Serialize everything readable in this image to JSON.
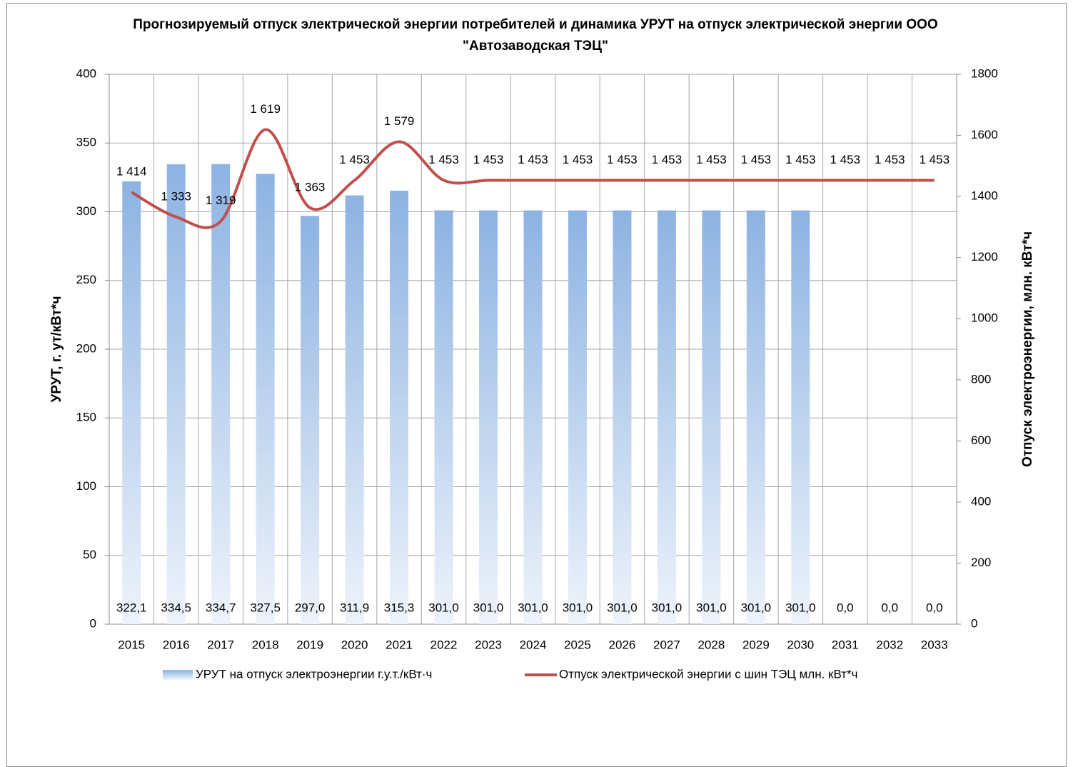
{
  "chart_data": {
    "type": "bar_line",
    "title": "Прогнозируемый отпуск электрической энергии потребителей и динамика УРУТ на отпуск электрической энергии ООО \"Автозаводская ТЭЦ\"",
    "y_label": "УРУТ, г. ут/кВт*ч",
    "y2_label": "Отпуск электроэнергии, млн. кВт*ч",
    "categories": [
      "2015",
      "2016",
      "2017",
      "2018",
      "2019",
      "2020",
      "2021",
      "2022",
      "2023",
      "2024",
      "2025",
      "2026",
      "2027",
      "2028",
      "2029",
      "2030",
      "2031",
      "2032",
      "2033"
    ],
    "series": [
      {
        "name": "УРУТ на отпуск электроэнергии г.у.т./кВт·ч",
        "type": "bar",
        "color": "#8db3e2",
        "values": [
          322.1,
          334.5,
          334.7,
          327.5,
          297.0,
          311.9,
          315.3,
          301.0,
          301.0,
          301.0,
          301.0,
          301.0,
          301.0,
          301.0,
          301.0,
          301.0,
          0.0,
          0.0,
          0.0
        ],
        "value_labels": [
          "322,1",
          "334,5",
          "334,7",
          "327,5",
          "297,0",
          "311,9",
          "315,3",
          "301,0",
          "301,0",
          "301,0",
          "301,0",
          "301,0",
          "301,0",
          "301,0",
          "301,0",
          "301,0",
          "0,0",
          "0,0",
          "0,0"
        ]
      },
      {
        "name": "Отпуск электрической энергии с шин ТЭЦ млн. кВт*ч",
        "type": "line",
        "axis": "y2",
        "color": "#c0504d",
        "values": [
          1414,
          1333,
          1319,
          1619,
          1363,
          1453,
          1579,
          1453,
          1453,
          1453,
          1453,
          1453,
          1453,
          1453,
          1453,
          1453,
          1453,
          1453,
          1453
        ],
        "value_labels": [
          "1 414",
          "1 333",
          "1 319",
          "1 619",
          "1 363",
          "1 453",
          "1 579",
          "1 453",
          "1 453",
          "1 453",
          "1 453",
          "1 453",
          "1 453",
          "1 453",
          "1 453",
          "1 453",
          "1 453",
          "1 453",
          "1 453"
        ]
      }
    ],
    "ylim": [
      0,
      400
    ],
    "yticks": [
      0,
      50,
      100,
      150,
      200,
      250,
      300,
      350,
      400
    ],
    "y2lim": [
      0,
      1800
    ],
    "y2ticks": [
      0,
      200,
      400,
      600,
      800,
      1000,
      1200,
      1400,
      1600,
      1800
    ],
    "grid": true,
    "legend": "bottom"
  }
}
